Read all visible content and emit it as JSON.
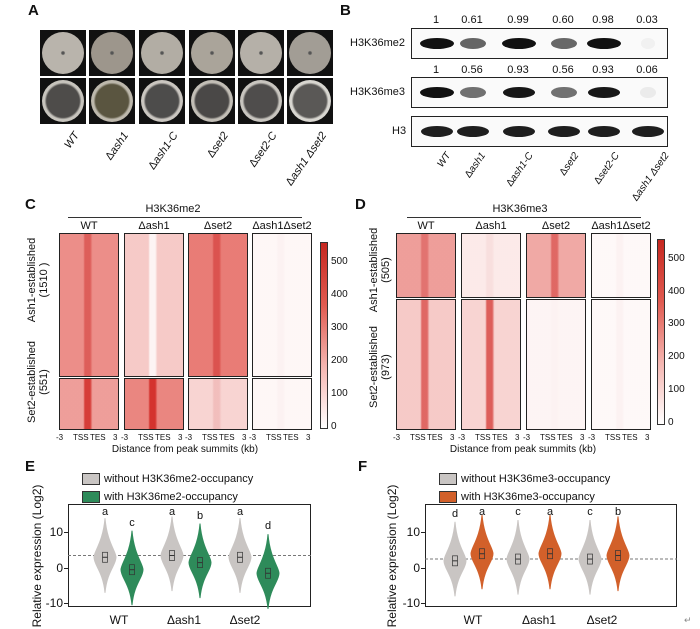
{
  "panels": {
    "a": "A",
    "b": "B",
    "c": "C",
    "d": "D",
    "e": "E",
    "f": "F"
  },
  "strains": [
    {
      "prefix": "",
      "name": "WT"
    },
    {
      "prefix": "Δ",
      "name": "ash1"
    },
    {
      "prefix": "Δ",
      "name": "ash1-C"
    },
    {
      "prefix": "Δ",
      "name": "set2"
    },
    {
      "prefix": "Δ",
      "name": "set2-C"
    },
    {
      "prefix": "Δ",
      "name": "ash1 Δset2"
    }
  ],
  "western": {
    "rows": [
      {
        "label": "H3K36me2",
        "values": [
          "1",
          "0.61",
          "0.99",
          "0.60",
          "0.98",
          "0.03"
        ]
      },
      {
        "label": "H3K36me3",
        "values": [
          "1",
          "0.56",
          "0.93",
          "0.56",
          "0.93",
          "0.06"
        ]
      },
      {
        "label": "H3",
        "values": []
      }
    ]
  },
  "heatmaps": {
    "c": {
      "title": "H3K36me2",
      "columns": [
        "WT",
        "Δash1",
        "Δset2",
        "Δash1Δset2"
      ],
      "groups": [
        "Ash1-established\n(1510 )",
        "Set2-established\n(551)"
      ],
      "xticks": [
        "-3",
        "TSS",
        "TES",
        "3"
      ],
      "xlabel": "Distance from peak summits (kb)",
      "colorbar": [
        "500",
        "400",
        "300",
        "200",
        "100",
        "0"
      ]
    },
    "d": {
      "title": "H3K36me3",
      "columns": [
        "WT",
        "Δash1",
        "Δset2",
        "Δash1Δset2"
      ],
      "groups": [
        "Ash1-established\n(505)",
        "Set2-established\n(973)"
      ],
      "xticks": [
        "-3",
        "TSS",
        "TES",
        "3"
      ],
      "xlabel": "Distance from peak summits (kb)",
      "colorbar": [
        "500",
        "400",
        "300",
        "200",
        "100",
        "0"
      ]
    }
  },
  "chart_data": [
    {
      "type": "violin",
      "panel": "E",
      "ylabel": "Relative expression (Log2)",
      "ylim": [
        -11,
        18
      ],
      "yticks": [
        "10",
        "0",
        "-10"
      ],
      "categories": [
        "WT",
        "Δash1",
        "Δset2"
      ],
      "series": [
        {
          "name": "without H3K36me2-occupancy",
          "color": "#c9c5c3",
          "medians": [
            3,
            3.5,
            3
          ],
          "letters": [
            "a",
            "a",
            "a"
          ]
        },
        {
          "name": "with H3K36me2-occupancy",
          "color": "#2e8b5a",
          "medians": [
            -0.5,
            1.5,
            -1.5
          ],
          "letters": [
            "c",
            "b",
            "d"
          ]
        }
      ],
      "reference_line": 3.5
    },
    {
      "type": "violin",
      "panel": "F",
      "ylabel": "Relative expression (Log2)",
      "ylim": [
        -11,
        18
      ],
      "yticks": [
        "10",
        "0",
        "-10"
      ],
      "categories": [
        "WT",
        "Δash1",
        "Δset2"
      ],
      "series": [
        {
          "name": "without H3K36me3-occupancy",
          "color": "#c9c5c3",
          "medians": [
            2,
            2.5,
            2.5
          ],
          "letters": [
            "d",
            "c",
            "c"
          ]
        },
        {
          "name": "with H3K36me3-occupancy",
          "color": "#d2602a",
          "medians": [
            4,
            4,
            3.5
          ],
          "letters": [
            "a",
            "a",
            "b"
          ]
        }
      ],
      "reference_line": 2.5
    }
  ]
}
